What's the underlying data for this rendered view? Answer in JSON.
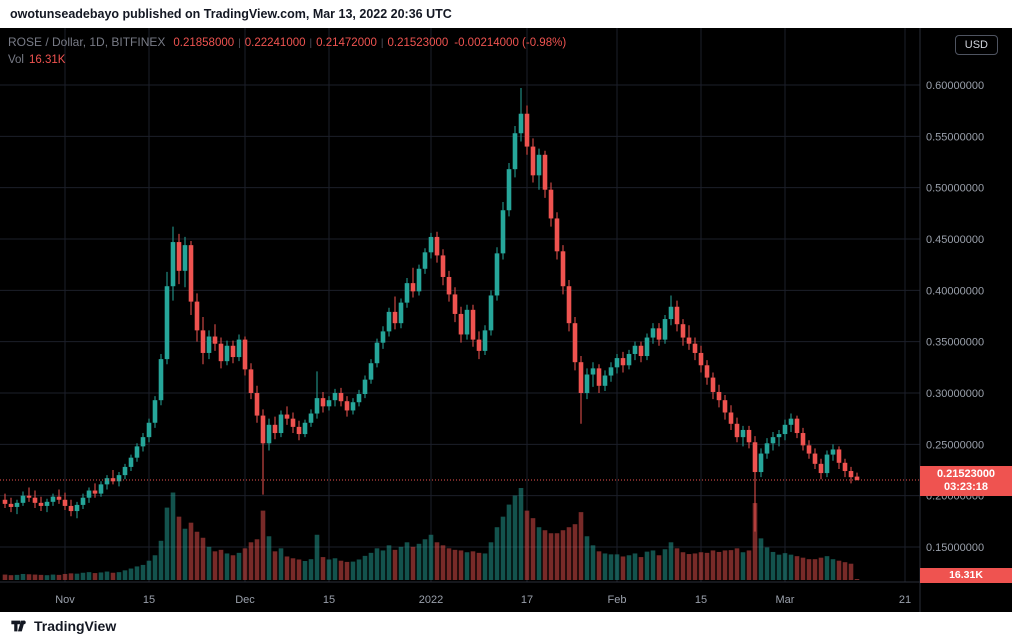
{
  "attribution": "owotunseadebayo published on TradingView.com, Mar 13, 2022 20:36 UTC",
  "legend": {
    "symbol": "ROSE / Dollar, 1D, BITFINEX",
    "open": "0.21858000",
    "high": "0.22241000",
    "low": "0.21472000",
    "close": "0.21523000",
    "change": "-0.00214000 (-0.98%)",
    "sep": "|",
    "vol_label": "Vol",
    "vol_value": "16.31K"
  },
  "chart_controls": {
    "currency": "USD"
  },
  "price_tag": {
    "price": "0.21523000",
    "countdown": "03:23:18",
    "volume": "16.31K"
  },
  "footer": {
    "brand": "TradingView"
  },
  "colors": {
    "up": "#26a69a",
    "down": "#ef5350",
    "grid": "#1c1f2a",
    "axis_text": "#9aa0ab",
    "separator": "#2a2e39",
    "accent_red": "#ef5350",
    "background": "#000000"
  },
  "chart_data": {
    "type": "candlestick",
    "symbol": "ROSE/USD",
    "exchange": "BITFINEX",
    "interval": "1D",
    "grid": true,
    "legend_position": "top-left",
    "last_price": 0.21523,
    "last_ohlc": {
      "open": 0.21858,
      "high": 0.22241,
      "low": 0.21472,
      "close": 0.21523,
      "volume_k": 16.31
    },
    "price_axis_ticks": [
      0.6,
      0.55,
      0.5,
      0.45,
      0.4,
      0.35,
      0.3,
      0.25,
      0.2,
      0.15
    ],
    "ylim_visible": [
      0.13,
      0.62
    ],
    "time_axis": [
      {
        "label": "Nov",
        "day": 10
      },
      {
        "label": "15",
        "day": 24
      },
      {
        "label": "Dec",
        "day": 40
      },
      {
        "label": "15",
        "day": 54
      },
      {
        "label": "2022",
        "day": 71
      },
      {
        "label": "17",
        "day": 87
      },
      {
        "label": "Feb",
        "day": 102
      },
      {
        "label": "15",
        "day": 116
      },
      {
        "label": "Mar",
        "day": 130
      },
      {
        "label": "21",
        "day": 150
      }
    ],
    "candles_format": [
      "open",
      "high",
      "low",
      "close",
      "volume_k"
    ],
    "candles": [
      [
        0.196,
        0.202,
        0.188,
        0.192,
        180
      ],
      [
        0.192,
        0.198,
        0.184,
        0.189,
        160
      ],
      [
        0.189,
        0.196,
        0.182,
        0.193,
        170
      ],
      [
        0.193,
        0.204,
        0.19,
        0.2,
        200
      ],
      [
        0.2,
        0.208,
        0.194,
        0.198,
        190
      ],
      [
        0.198,
        0.205,
        0.188,
        0.193,
        180
      ],
      [
        0.193,
        0.199,
        0.185,
        0.19,
        170
      ],
      [
        0.19,
        0.197,
        0.184,
        0.194,
        160
      ],
      [
        0.194,
        0.202,
        0.19,
        0.199,
        180
      ],
      [
        0.199,
        0.206,
        0.192,
        0.196,
        170
      ],
      [
        0.196,
        0.203,
        0.186,
        0.19,
        200
      ],
      [
        0.19,
        0.196,
        0.18,
        0.185,
        220
      ],
      [
        0.185,
        0.194,
        0.178,
        0.191,
        210
      ],
      [
        0.191,
        0.202,
        0.187,
        0.198,
        240
      ],
      [
        0.198,
        0.208,
        0.193,
        0.205,
        260
      ],
      [
        0.205,
        0.212,
        0.198,
        0.202,
        230
      ],
      [
        0.202,
        0.214,
        0.199,
        0.211,
        250
      ],
      [
        0.211,
        0.22,
        0.206,
        0.217,
        280
      ],
      [
        0.217,
        0.225,
        0.211,
        0.214,
        240
      ],
      [
        0.214,
        0.223,
        0.209,
        0.22,
        260
      ],
      [
        0.22,
        0.231,
        0.216,
        0.228,
        320
      ],
      [
        0.228,
        0.24,
        0.224,
        0.237,
        380
      ],
      [
        0.237,
        0.251,
        0.233,
        0.248,
        450
      ],
      [
        0.248,
        0.261,
        0.243,
        0.257,
        500
      ],
      [
        0.257,
        0.275,
        0.252,
        0.271,
        640
      ],
      [
        0.271,
        0.297,
        0.266,
        0.293,
        820
      ],
      [
        0.293,
        0.338,
        0.288,
        0.333,
        1300
      ],
      [
        0.333,
        0.418,
        0.328,
        0.404,
        2400
      ],
      [
        0.404,
        0.462,
        0.39,
        0.447,
        2900
      ],
      [
        0.447,
        0.455,
        0.406,
        0.419,
        2100
      ],
      [
        0.419,
        0.452,
        0.403,
        0.444,
        1700
      ],
      [
        0.444,
        0.448,
        0.376,
        0.389,
        1900
      ],
      [
        0.389,
        0.397,
        0.35,
        0.361,
        1600
      ],
      [
        0.361,
        0.374,
        0.328,
        0.339,
        1400
      ],
      [
        0.339,
        0.361,
        0.333,
        0.355,
        1100
      ],
      [
        0.355,
        0.367,
        0.341,
        0.348,
        950
      ],
      [
        0.348,
        0.354,
        0.324,
        0.331,
        1000
      ],
      [
        0.331,
        0.351,
        0.327,
        0.346,
        880
      ],
      [
        0.346,
        0.351,
        0.329,
        0.335,
        820
      ],
      [
        0.335,
        0.357,
        0.331,
        0.352,
        900
      ],
      [
        0.352,
        0.355,
        0.317,
        0.323,
        1050
      ],
      [
        0.323,
        0.329,
        0.294,
        0.3,
        1250
      ],
      [
        0.3,
        0.307,
        0.271,
        0.278,
        1350
      ],
      [
        0.278,
        0.284,
        0.201,
        0.251,
        2300
      ],
      [
        0.251,
        0.275,
        0.244,
        0.269,
        1450
      ],
      [
        0.269,
        0.277,
        0.255,
        0.261,
        950
      ],
      [
        0.261,
        0.283,
        0.257,
        0.279,
        1050
      ],
      [
        0.279,
        0.287,
        0.269,
        0.275,
        780
      ],
      [
        0.275,
        0.281,
        0.261,
        0.267,
        720
      ],
      [
        0.267,
        0.273,
        0.254,
        0.26,
        680
      ],
      [
        0.26,
        0.274,
        0.257,
        0.271,
        630
      ],
      [
        0.271,
        0.284,
        0.267,
        0.28,
        690
      ],
      [
        0.28,
        0.321,
        0.275,
        0.295,
        1500
      ],
      [
        0.295,
        0.301,
        0.281,
        0.287,
        760
      ],
      [
        0.287,
        0.297,
        0.283,
        0.293,
        680
      ],
      [
        0.293,
        0.304,
        0.287,
        0.3,
        720
      ],
      [
        0.3,
        0.305,
        0.287,
        0.292,
        640
      ],
      [
        0.292,
        0.297,
        0.277,
        0.283,
        600
      ],
      [
        0.283,
        0.295,
        0.279,
        0.291,
        610
      ],
      [
        0.291,
        0.303,
        0.287,
        0.299,
        680
      ],
      [
        0.299,
        0.317,
        0.295,
        0.313,
        800
      ],
      [
        0.313,
        0.333,
        0.309,
        0.329,
        900
      ],
      [
        0.329,
        0.353,
        0.325,
        0.349,
        1050
      ],
      [
        0.349,
        0.365,
        0.343,
        0.36,
        980
      ],
      [
        0.36,
        0.383,
        0.355,
        0.379,
        1150
      ],
      [
        0.379,
        0.394,
        0.362,
        0.368,
        1000
      ],
      [
        0.368,
        0.392,
        0.363,
        0.388,
        1100
      ],
      [
        0.388,
        0.412,
        0.383,
        0.407,
        1250
      ],
      [
        0.407,
        0.422,
        0.393,
        0.399,
        1100
      ],
      [
        0.399,
        0.425,
        0.395,
        0.421,
        1200
      ],
      [
        0.421,
        0.441,
        0.416,
        0.437,
        1350
      ],
      [
        0.437,
        0.456,
        0.431,
        0.452,
        1500
      ],
      [
        0.452,
        0.457,
        0.427,
        0.434,
        1250
      ],
      [
        0.434,
        0.44,
        0.405,
        0.413,
        1150
      ],
      [
        0.413,
        0.419,
        0.389,
        0.396,
        1050
      ],
      [
        0.396,
        0.403,
        0.369,
        0.377,
        1000
      ],
      [
        0.377,
        0.384,
        0.349,
        0.357,
        980
      ],
      [
        0.357,
        0.386,
        0.352,
        0.381,
        920
      ],
      [
        0.381,
        0.386,
        0.345,
        0.352,
        950
      ],
      [
        0.352,
        0.36,
        0.333,
        0.341,
        900
      ],
      [
        0.341,
        0.366,
        0.337,
        0.361,
        880
      ],
      [
        0.361,
        0.4,
        0.356,
        0.395,
        1250
      ],
      [
        0.395,
        0.442,
        0.39,
        0.436,
        1750
      ],
      [
        0.436,
        0.486,
        0.43,
        0.478,
        2100
      ],
      [
        0.478,
        0.524,
        0.472,
        0.518,
        2500
      ],
      [
        0.518,
        0.56,
        0.51,
        0.553,
        2800
      ],
      [
        0.553,
        0.597,
        0.545,
        0.572,
        3050
      ],
      [
        0.572,
        0.58,
        0.532,
        0.54,
        2300
      ],
      [
        0.54,
        0.548,
        0.505,
        0.512,
        2050
      ],
      [
        0.512,
        0.538,
        0.498,
        0.532,
        1750
      ],
      [
        0.532,
        0.536,
        0.49,
        0.498,
        1650
      ],
      [
        0.498,
        0.505,
        0.462,
        0.47,
        1550
      ],
      [
        0.47,
        0.476,
        0.43,
        0.438,
        1550
      ],
      [
        0.438,
        0.444,
        0.396,
        0.404,
        1650
      ],
      [
        0.404,
        0.41,
        0.36,
        0.368,
        1750
      ],
      [
        0.368,
        0.374,
        0.322,
        0.33,
        1850
      ],
      [
        0.33,
        0.336,
        0.27,
        0.3,
        2250
      ],
      [
        0.3,
        0.324,
        0.294,
        0.318,
        1450
      ],
      [
        0.318,
        0.33,
        0.306,
        0.324,
        1150
      ],
      [
        0.324,
        0.328,
        0.3,
        0.307,
        950
      ],
      [
        0.307,
        0.322,
        0.302,
        0.317,
        880
      ],
      [
        0.317,
        0.33,
        0.311,
        0.325,
        850
      ],
      [
        0.325,
        0.338,
        0.319,
        0.334,
        850
      ],
      [
        0.334,
        0.34,
        0.32,
        0.327,
        780
      ],
      [
        0.327,
        0.342,
        0.323,
        0.338,
        820
      ],
      [
        0.338,
        0.35,
        0.332,
        0.346,
        880
      ],
      [
        0.346,
        0.35,
        0.33,
        0.336,
        760
      ],
      [
        0.336,
        0.358,
        0.332,
        0.354,
        940
      ],
      [
        0.354,
        0.368,
        0.348,
        0.363,
        980
      ],
      [
        0.363,
        0.368,
        0.346,
        0.352,
        820
      ],
      [
        0.352,
        0.376,
        0.348,
        0.372,
        1020
      ],
      [
        0.372,
        0.395,
        0.366,
        0.384,
        1250
      ],
      [
        0.384,
        0.39,
        0.36,
        0.367,
        1050
      ],
      [
        0.367,
        0.372,
        0.346,
        0.354,
        920
      ],
      [
        0.354,
        0.366,
        0.342,
        0.348,
        860
      ],
      [
        0.348,
        0.354,
        0.332,
        0.339,
        880
      ],
      [
        0.339,
        0.346,
        0.32,
        0.327,
        920
      ],
      [
        0.327,
        0.332,
        0.308,
        0.315,
        900
      ],
      [
        0.315,
        0.32,
        0.294,
        0.301,
        980
      ],
      [
        0.301,
        0.308,
        0.286,
        0.293,
        930
      ],
      [
        0.293,
        0.298,
        0.274,
        0.281,
        980
      ],
      [
        0.281,
        0.288,
        0.264,
        0.27,
        990
      ],
      [
        0.27,
        0.276,
        0.252,
        0.257,
        1050
      ],
      [
        0.257,
        0.268,
        0.248,
        0.264,
        920
      ],
      [
        0.264,
        0.268,
        0.246,
        0.252,
        980
      ],
      [
        0.252,
        0.258,
        0.165,
        0.223,
        2550
      ],
      [
        0.223,
        0.246,
        0.218,
        0.241,
        1380
      ],
      [
        0.241,
        0.256,
        0.236,
        0.251,
        1080
      ],
      [
        0.251,
        0.262,
        0.244,
        0.257,
        930
      ],
      [
        0.257,
        0.264,
        0.248,
        0.26,
        840
      ],
      [
        0.26,
        0.274,
        0.254,
        0.269,
        890
      ],
      [
        0.269,
        0.28,
        0.262,
        0.275,
        840
      ],
      [
        0.275,
        0.278,
        0.256,
        0.261,
        790
      ],
      [
        0.261,
        0.266,
        0.244,
        0.249,
        740
      ],
      [
        0.249,
        0.254,
        0.236,
        0.241,
        690
      ],
      [
        0.241,
        0.246,
        0.226,
        0.231,
        690
      ],
      [
        0.231,
        0.236,
        0.216,
        0.222,
        740
      ],
      [
        0.222,
        0.244,
        0.218,
        0.24,
        790
      ],
      [
        0.24,
        0.25,
        0.234,
        0.245,
        690
      ],
      [
        0.245,
        0.248,
        0.226,
        0.232,
        640
      ],
      [
        0.232,
        0.236,
        0.218,
        0.224,
        590
      ],
      [
        0.224,
        0.228,
        0.212,
        0.218,
        540
      ],
      [
        0.21858,
        0.22241,
        0.21472,
        0.21523,
        16.31
      ]
    ]
  }
}
